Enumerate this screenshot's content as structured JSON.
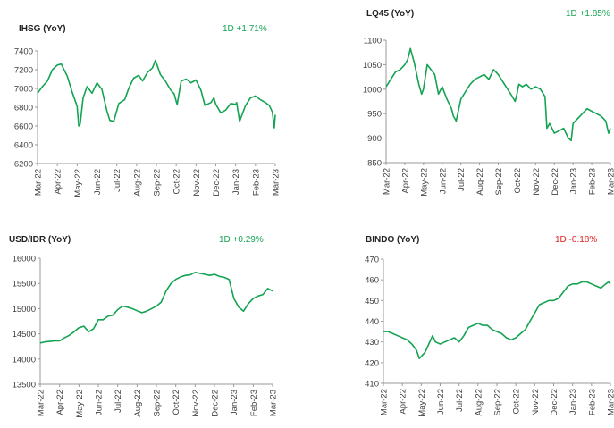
{
  "colors": {
    "line": "#13a352",
    "up": "#13a352",
    "down": "#e02020",
    "axis": "#9a9a9a"
  },
  "panels": [
    {
      "title": "IHSG (YoY)",
      "change": "1D +1.71%",
      "direction": "up"
    },
    {
      "title": "LQ45 (YoY)",
      "change": "1D +1.85%",
      "direction": "up"
    },
    {
      "title": "USD/IDR (YoY)",
      "change": "1D +0.29%",
      "direction": "up"
    },
    {
      "title": "BINDO (YoY)",
      "change": "1D -0.18%",
      "direction": "down"
    }
  ],
  "chart_data": [
    {
      "type": "line",
      "title": "IHSG (YoY)",
      "x_tick_labels": [
        "Mar-22",
        "Apr-22",
        "May-22",
        "Jun-22",
        "Jul-22",
        "Aug-22",
        "Sep-22",
        "Oct-22",
        "Nov-22",
        "Dec-22",
        "Jan-23",
        "Feb-23",
        "Mar-23"
      ],
      "ylim": [
        6200,
        7400
      ],
      "y_ticks": [
        6200,
        6400,
        6600,
        6800,
        7000,
        7200,
        7400
      ],
      "grid": false,
      "series": [
        {
          "x": [
            0,
            0.25,
            0.5,
            0.75,
            1,
            1.2,
            1.5,
            1.75,
            2,
            2.08,
            2.15,
            2.3,
            2.5,
            2.75,
            3,
            3.25,
            3.5,
            3.65,
            3.85,
            4.1,
            4.4,
            4.6,
            4.85,
            5.1,
            5.3,
            5.55,
            5.8,
            5.95,
            6.05,
            6.2,
            6.45,
            6.7,
            6.9,
            7,
            7.05,
            7.25,
            7.5,
            7.75,
            8,
            8.25,
            8.45,
            8.75,
            8.9,
            9,
            9.25,
            9.5,
            9.75,
            10,
            10.05,
            10.2,
            10.5,
            10.75,
            11,
            11.25,
            11.5,
            11.7,
            11.85,
            11.95,
            12
          ],
          "values": [
            6950,
            7020,
            7080,
            7200,
            7250,
            7260,
            7130,
            6960,
            6810,
            6600,
            6620,
            6900,
            7020,
            6950,
            7060,
            6990,
            6760,
            6660,
            6650,
            6840,
            6880,
            7000,
            7110,
            7140,
            7080,
            7170,
            7220,
            7300,
            7240,
            7150,
            7080,
            6990,
            6940,
            6860,
            6830,
            7080,
            7100,
            7060,
            7090,
            6980,
            6820,
            6850,
            6900,
            6830,
            6740,
            6770,
            6840,
            6830,
            6850,
            6650,
            6820,
            6900,
            6920,
            6880,
            6850,
            6820,
            6750,
            6580,
            6720
          ]
        }
      ]
    },
    {
      "type": "line",
      "title": "LQ45 (YoY)",
      "x_tick_labels": [
        "Mar-22",
        "Apr-22",
        "May-22",
        "Jun-22",
        "Jul-22",
        "Aug-22",
        "Sep-22",
        "Oct-22",
        "Nov-22",
        "Dec-22",
        "Jan-23",
        "Feb-23",
        "Mar-23"
      ],
      "ylim": [
        850,
        1100
      ],
      "y_ticks": [
        850,
        900,
        950,
        1000,
        1050,
        1100
      ],
      "grid": false,
      "series": [
        {
          "x": [
            0,
            0.25,
            0.5,
            0.75,
            1,
            1.15,
            1.3,
            1.5,
            1.75,
            1.9,
            2,
            2.2,
            2.4,
            2.6,
            2.8,
            3,
            3.25,
            3.5,
            3.6,
            3.75,
            4,
            4.25,
            4.5,
            4.75,
            5,
            5.25,
            5.5,
            5.75,
            6,
            6.25,
            6.5,
            6.75,
            6.9,
            7,
            7.1,
            7.3,
            7.5,
            7.75,
            8,
            8.25,
            8.5,
            8.6,
            8.75,
            9,
            9.25,
            9.5,
            9.75,
            9.9,
            10,
            10.25,
            10.5,
            10.75,
            11,
            11.25,
            11.5,
            11.75,
            11.9,
            12
          ],
          "values": [
            1005,
            1020,
            1035,
            1040,
            1050,
            1060,
            1083,
            1055,
            1010,
            990,
            1000,
            1050,
            1040,
            1030,
            990,
            1005,
            980,
            960,
            945,
            935,
            980,
            995,
            1010,
            1020,
            1025,
            1030,
            1020,
            1040,
            1030,
            1015,
            1000,
            985,
            975,
            990,
            1010,
            1005,
            1010,
            1000,
            1005,
            1000,
            985,
            920,
            930,
            910,
            915,
            920,
            900,
            895,
            930,
            940,
            950,
            960,
            955,
            950,
            945,
            935,
            910,
            920
          ]
        }
      ]
    },
    {
      "type": "line",
      "title": "USD/IDR (YoY)",
      "x_tick_labels": [
        "Mar-22",
        "Apr-22",
        "May-22",
        "Jun-22",
        "Jul-22",
        "Aug-22",
        "Sep-22",
        "Oct-22",
        "Nov-22",
        "Dec-22",
        "Jan-23",
        "Feb-23",
        "Mar-23"
      ],
      "ylim": [
        13500,
        16000
      ],
      "y_ticks": [
        13500,
        14000,
        14500,
        15000,
        15500,
        16000
      ],
      "grid": false,
      "series": [
        {
          "x": [
            0,
            0.25,
            0.5,
            0.75,
            1,
            1.25,
            1.5,
            1.75,
            2,
            2.25,
            2.5,
            2.75,
            3,
            3.25,
            3.5,
            3.75,
            4,
            4.25,
            4.5,
            4.75,
            5,
            5.25,
            5.5,
            5.75,
            6,
            6.25,
            6.5,
            6.75,
            7,
            7.25,
            7.5,
            7.75,
            8,
            8.25,
            8.5,
            8.75,
            9,
            9.25,
            9.5,
            9.75,
            10,
            10.25,
            10.5,
            10.75,
            11,
            11.25,
            11.5,
            11.75,
            12
          ],
          "values": [
            14320,
            14340,
            14350,
            14360,
            14360,
            14420,
            14470,
            14540,
            14620,
            14650,
            14540,
            14600,
            14780,
            14780,
            14850,
            14870,
            14980,
            15050,
            15030,
            15000,
            14960,
            14920,
            14950,
            15000,
            15050,
            15130,
            15350,
            15500,
            15580,
            15630,
            15660,
            15670,
            15720,
            15700,
            15680,
            15660,
            15680,
            15640,
            15620,
            15580,
            15200,
            15030,
            14950,
            15100,
            15200,
            15250,
            15280,
            15400,
            15350
          ]
        }
      ]
    },
    {
      "type": "line",
      "title": "BINDO (YoY)",
      "x_tick_labels": [
        "Mar-22",
        "Apr-22",
        "May-22",
        "Jun-22",
        "Jul-22",
        "Aug-22",
        "Sep-22",
        "Oct-22",
        "Nov-22",
        "Dec-22",
        "Jan-23",
        "Feb-23",
        "Mar-23"
      ],
      "ylim": [
        410,
        470
      ],
      "y_ticks": [
        410,
        420,
        430,
        440,
        450,
        460,
        470
      ],
      "grid": false,
      "series": [
        {
          "x": [
            0,
            0.25,
            0.5,
            0.75,
            1,
            1.25,
            1.5,
            1.75,
            1.9,
            2,
            2.2,
            2.4,
            2.6,
            2.75,
            3,
            3.25,
            3.5,
            3.75,
            4,
            4.25,
            4.5,
            4.75,
            5,
            5.25,
            5.5,
            5.75,
            6,
            6.25,
            6.5,
            6.75,
            7,
            7.25,
            7.5,
            7.75,
            8,
            8.25,
            8.5,
            8.75,
            9,
            9.25,
            9.5,
            9.75,
            10,
            10.25,
            10.5,
            10.75,
            11,
            11.25,
            11.5,
            11.75,
            11.9,
            12
          ],
          "values": [
            435,
            435,
            434,
            433,
            432,
            431,
            429,
            426,
            422,
            423,
            425,
            429,
            433,
            430,
            429,
            430,
            431,
            432,
            430,
            433,
            437,
            438,
            439,
            438,
            438,
            436,
            435,
            434,
            432,
            431,
            432,
            434,
            436,
            440,
            444,
            448,
            449,
            450,
            450,
            451,
            454,
            457,
            458,
            458,
            459,
            459,
            458,
            457,
            456,
            458,
            459,
            458
          ]
        }
      ]
    }
  ]
}
